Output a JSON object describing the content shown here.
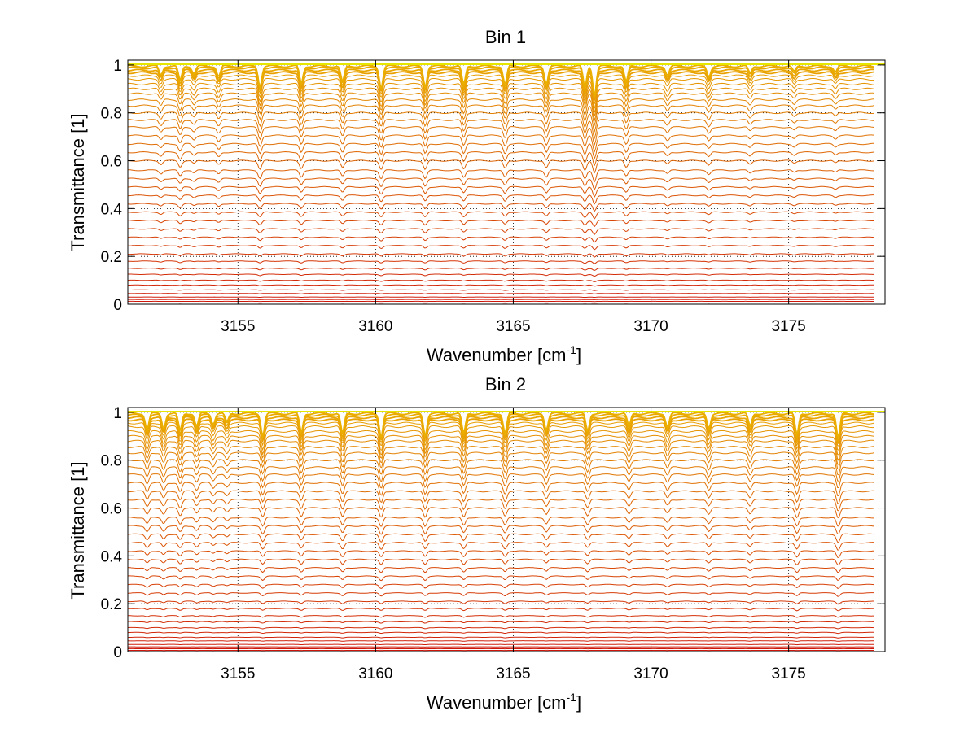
{
  "chart_data": [
    {
      "type": "line",
      "title": "Bin 1",
      "xlabel": {
        "main": "Wavenumber [cm",
        "superscript": "-1",
        "close": "]"
      },
      "ylabel": "Transmittance [1]",
      "xlim": [
        3151,
        3178.5
      ],
      "ylim": [
        0,
        1.02
      ],
      "xticks": [
        "3155",
        "3160",
        "3165",
        "3170",
        "3175"
      ],
      "yticks": [
        "0",
        "0.2",
        "0.4",
        "0.6",
        "0.8",
        "1"
      ],
      "grid": "dotted",
      "series_count": 40,
      "baseline_levels": [
        0.005,
        0.012,
        0.02,
        0.03,
        0.045,
        0.06,
        0.08,
        0.1,
        0.125,
        0.15,
        0.18,
        0.21,
        0.245,
        0.28,
        0.315,
        0.35,
        0.385,
        0.42,
        0.455,
        0.49,
        0.525,
        0.56,
        0.6,
        0.635,
        0.67,
        0.705,
        0.74,
        0.77,
        0.8,
        0.83,
        0.855,
        0.88,
        0.9,
        0.92,
        0.94,
        0.955,
        0.968,
        0.978,
        0.988,
        0.995
      ],
      "absorption_lines": [
        {
          "x": 3152.2,
          "depth": 0.3
        },
        {
          "x": 3152.9,
          "depth": 0.5
        },
        {
          "x": 3153.4,
          "depth": 0.25
        },
        {
          "x": 3154.3,
          "depth": 0.35
        },
        {
          "x": 3155.8,
          "depth": 0.7
        },
        {
          "x": 3157.3,
          "depth": 0.6
        },
        {
          "x": 3158.8,
          "depth": 0.55
        },
        {
          "x": 3160.2,
          "depth": 0.75
        },
        {
          "x": 3161.8,
          "depth": 0.7
        },
        {
          "x": 3163.2,
          "depth": 0.65
        },
        {
          "x": 3164.7,
          "depth": 0.65
        },
        {
          "x": 3166.2,
          "depth": 0.6
        },
        {
          "x": 3167.6,
          "depth": 0.75
        },
        {
          "x": 3167.95,
          "depth": 1.0
        },
        {
          "x": 3169.1,
          "depth": 0.55
        },
        {
          "x": 3170.6,
          "depth": 0.3
        },
        {
          "x": 3172.1,
          "depth": 0.35
        },
        {
          "x": 3173.6,
          "depth": 0.25
        },
        {
          "x": 3175.2,
          "depth": 0.2
        },
        {
          "x": 3176.7,
          "depth": 0.2
        }
      ]
    },
    {
      "type": "line",
      "title": "Bin 2",
      "xlabel": {
        "main": "Wavenumber [cm",
        "superscript": "-1",
        "close": "]"
      },
      "ylabel": "Transmittance [1]",
      "xlim": [
        3151,
        3178.5
      ],
      "ylim": [
        0,
        1.02
      ],
      "xticks": [
        "3155",
        "3160",
        "3165",
        "3170",
        "3175"
      ],
      "yticks": [
        "0",
        "0.2",
        "0.4",
        "0.6",
        "0.8",
        "1"
      ],
      "grid": "dotted",
      "series_count": 40,
      "baseline_levels": [
        0.005,
        0.012,
        0.02,
        0.03,
        0.045,
        0.06,
        0.08,
        0.1,
        0.125,
        0.15,
        0.18,
        0.21,
        0.245,
        0.28,
        0.315,
        0.35,
        0.385,
        0.42,
        0.455,
        0.49,
        0.525,
        0.56,
        0.6,
        0.635,
        0.67,
        0.705,
        0.74,
        0.77,
        0.8,
        0.83,
        0.855,
        0.88,
        0.9,
        0.92,
        0.94,
        0.955,
        0.968,
        0.978,
        0.988,
        0.995
      ],
      "absorption_lines": [
        {
          "x": 3151.7,
          "depth": 0.55
        },
        {
          "x": 3152.3,
          "depth": 0.5
        },
        {
          "x": 3152.9,
          "depth": 0.6
        },
        {
          "x": 3153.5,
          "depth": 0.45
        },
        {
          "x": 3154.1,
          "depth": 0.35
        },
        {
          "x": 3154.6,
          "depth": 0.3
        },
        {
          "x": 3155.9,
          "depth": 0.75
        },
        {
          "x": 3157.3,
          "depth": 0.65
        },
        {
          "x": 3158.8,
          "depth": 0.7
        },
        {
          "x": 3160.2,
          "depth": 0.8
        },
        {
          "x": 3161.8,
          "depth": 0.75
        },
        {
          "x": 3163.2,
          "depth": 0.7
        },
        {
          "x": 3164.7,
          "depth": 0.7
        },
        {
          "x": 3166.2,
          "depth": 0.55
        },
        {
          "x": 3167.7,
          "depth": 0.6
        },
        {
          "x": 3169.2,
          "depth": 0.45
        },
        {
          "x": 3170.6,
          "depth": 0.45
        },
        {
          "x": 3172.1,
          "depth": 0.5
        },
        {
          "x": 3173.6,
          "depth": 0.45
        },
        {
          "x": 3175.3,
          "depth": 0.75
        },
        {
          "x": 3176.8,
          "depth": 0.85
        }
      ]
    }
  ]
}
